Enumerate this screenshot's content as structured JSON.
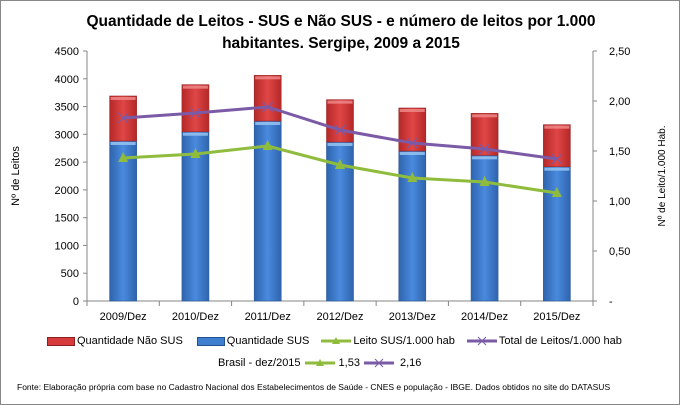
{
  "chart_data": {
    "type": "bar",
    "title": "Quantidade de Leitos - SUS e Não SUS - e número de leitos por 1.000 habitantes. Sergipe, 2009 a 2015",
    "categories": [
      "2009/Dez",
      "2010/Dez",
      "2011/Dez",
      "2012/Dez",
      "2013/Dez",
      "2014/Dez",
      "2015/Dez"
    ],
    "ylabel": "Nº de Leitos",
    "y2label": "Nº de Leito/1.000 Hab.",
    "ylim": [
      0,
      4500
    ],
    "y_ticks": [
      "0",
      "500",
      "1000",
      "1500",
      "2000",
      "2500",
      "3000",
      "3500",
      "4000",
      "4500"
    ],
    "y2lim": [
      0,
      2.5
    ],
    "y2_ticks": [
      "-",
      "0,50",
      "1,00",
      "1,50",
      "2,00",
      "2,50"
    ],
    "stacked": true,
    "series": [
      {
        "name": "Quantidade SUS",
        "type": "bar",
        "axis": "left",
        "color": "#3f7fd0",
        "values": [
          2880,
          3047,
          3240,
          2862,
          2700,
          2622,
          2418
        ]
      },
      {
        "name": "Quantidade Não SUS",
        "type": "bar",
        "axis": "left",
        "color": "#d63a3a",
        "values": [
          810,
          847,
          822,
          762,
          774,
          756,
          756
        ]
      },
      {
        "name": "Leito SUS/1.000 hab",
        "type": "line",
        "axis": "right",
        "marker": "triangle",
        "color": "#8fbc3c",
        "values": [
          1.43,
          1.47,
          1.55,
          1.36,
          1.23,
          1.19,
          1.08
        ]
      },
      {
        "name": "Total de Leitos/1.000 hab",
        "type": "line",
        "axis": "right",
        "marker": "x",
        "color": "#7b5aa6",
        "values": [
          1.83,
          1.88,
          1.94,
          1.71,
          1.58,
          1.52,
          1.42
        ]
      }
    ],
    "legend_order": [
      "Quantidade Não SUS",
      "Quantidade SUS",
      "Leito SUS/1.000 hab",
      "Total de Leitos/1.000 hab"
    ],
    "legend_position": "bottom",
    "grid": false,
    "reference": {
      "label": "Brasil -  dez/2015",
      "leito_sus": "1,53",
      "total": "2,16"
    },
    "source": "Fonte: Elaboração própria com base no  Cadastro Nacional dos Estabelecimentos de Saúde - CNES e população - IBGE. Dados obtidos no site do DATASUS"
  }
}
